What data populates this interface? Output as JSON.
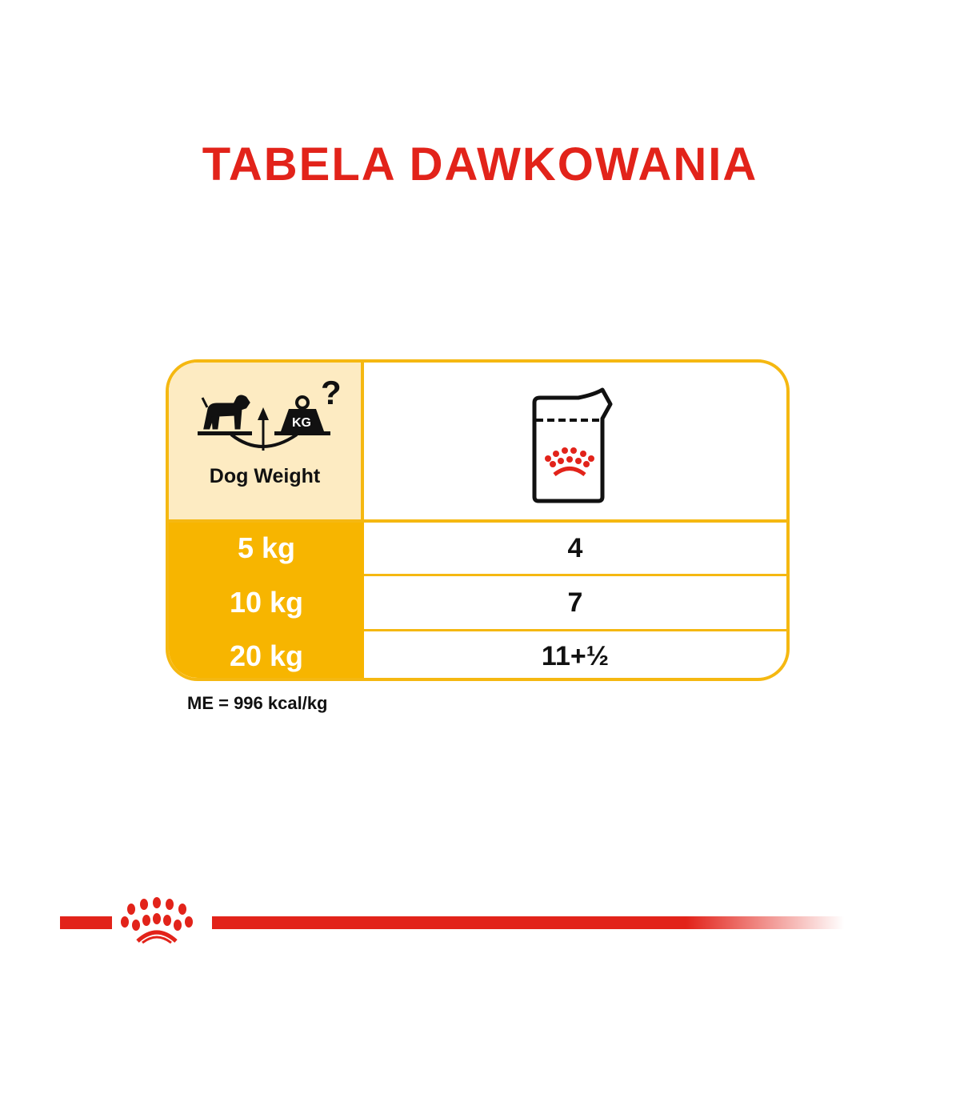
{
  "title": "TABELA DAWKOWANIA",
  "header": {
    "weight_label": "Dog Weight",
    "weight_icon": "dog-scale-kg-icon",
    "kg_text": "KG",
    "pouch_icon": "pouch-icon"
  },
  "rows": [
    {
      "weight": "5 kg",
      "pouches": "4"
    },
    {
      "weight": "10 kg",
      "pouches": "7"
    },
    {
      "weight": "20 kg",
      "pouches": "11+½"
    }
  ],
  "footnote": "ME = 996 kcal/kg",
  "colors": {
    "red": "#e2231a",
    "yellow": "#f7b500",
    "cream": "#fdebc2"
  },
  "logo": "royal-canin-crown"
}
